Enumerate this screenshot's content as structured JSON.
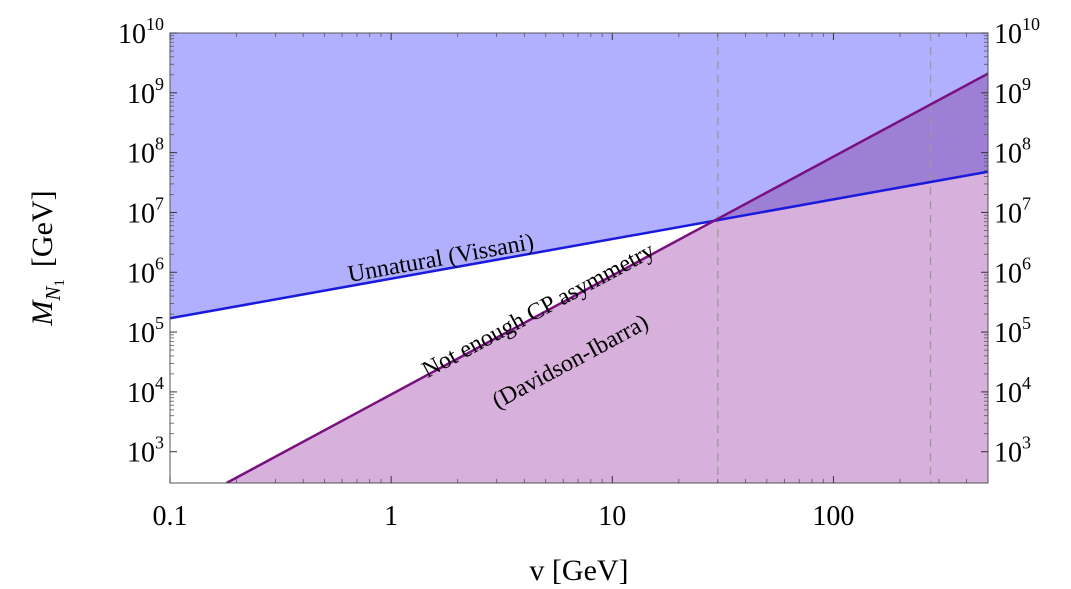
{
  "chart_data": {
    "type": "area",
    "xlabel": "v [GeV]",
    "ylabel": {
      "main": "M",
      "sub": "N",
      "subsub": "1",
      "unit": "[GeV]"
    },
    "x_scale": "log",
    "y_scale": "log",
    "xlim": [
      0.1,
      500
    ],
    "ylim": [
      300,
      10000000000
    ],
    "x_ticks": [
      {
        "value": 0.1,
        "label": "0.1"
      },
      {
        "value": 1,
        "label": "1"
      },
      {
        "value": 10,
        "label": "10"
      },
      {
        "value": 100,
        "label": "100"
      }
    ],
    "y_ticks": [
      {
        "value": 1000,
        "base": "10",
        "exp": "3"
      },
      {
        "value": 10000,
        "base": "10",
        "exp": "4"
      },
      {
        "value": 100000,
        "base": "10",
        "exp": "5"
      },
      {
        "value": 1000000,
        "base": "10",
        "exp": "6"
      },
      {
        "value": 10000000,
        "base": "10",
        "exp": "7"
      },
      {
        "value": 100000000,
        "base": "10",
        "exp": "8"
      },
      {
        "value": 1000000000,
        "base": "10",
        "exp": "9"
      },
      {
        "value": 10000000000,
        "base": "10",
        "exp": "10"
      }
    ],
    "series": [
      {
        "name": "Unnatural (Vissani)",
        "color": "#1a1adc",
        "fill": "#b0b0ff",
        "fill_side": "above",
        "x": [
          0.1,
          500
        ],
        "y": [
          170000,
          48000000
        ]
      },
      {
        "name": "Not enough CP asymmetry (Davidson-Ibarra)",
        "color": "#7a1080",
        "fill": "#d8b0dc",
        "fill_side": "below",
        "x": [
          0.18,
          500
        ],
        "y": [
          300,
          2100000000
        ]
      }
    ],
    "overlap_fill": "#9d7fd6",
    "vertical_lines": [
      30,
      275
    ],
    "vertical_line_style": "dashed",
    "annotations": [
      {
        "text": "Unnatural (Vissani)",
        "x": 1.7,
        "y": 1300000
      },
      {
        "text": "Not enough CP asymmetry",
        "x": 4.8,
        "y": 180000
      },
      {
        "text": "(Davidson-Ibarra)",
        "x": 6.7,
        "y": 25000
      }
    ]
  }
}
